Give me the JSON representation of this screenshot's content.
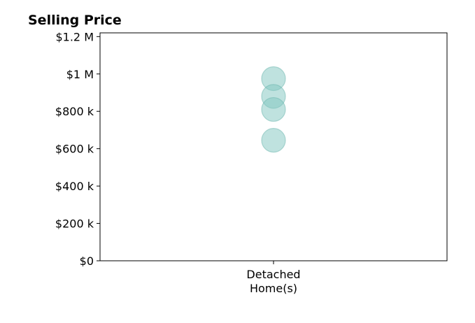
{
  "chart_data": {
    "type": "scatter",
    "title": "Selling Price",
    "xlabel": "",
    "ylabel": "",
    "categories": [
      "Detached\nHome(s)"
    ],
    "series": [
      {
        "category": "Detached\nHome(s)",
        "values": [
          975000,
          880000,
          810000,
          645000
        ]
      }
    ],
    "y_ticks": [
      {
        "value": 0,
        "label": "$0"
      },
      {
        "value": 200000,
        "label": "$200 k"
      },
      {
        "value": 400000,
        "label": "$400 k"
      },
      {
        "value": 600000,
        "label": "$600 k"
      },
      {
        "value": 800000,
        "label": "$800 k"
      },
      {
        "value": 1000000,
        "label": "$1 M"
      },
      {
        "value": 1200000,
        "label": "$1.2 M"
      }
    ],
    "ylim": [
      0,
      1220000
    ],
    "grid": false,
    "marker_color": "#7fc6bf",
    "marker_stroke": "#6bb5ad"
  }
}
